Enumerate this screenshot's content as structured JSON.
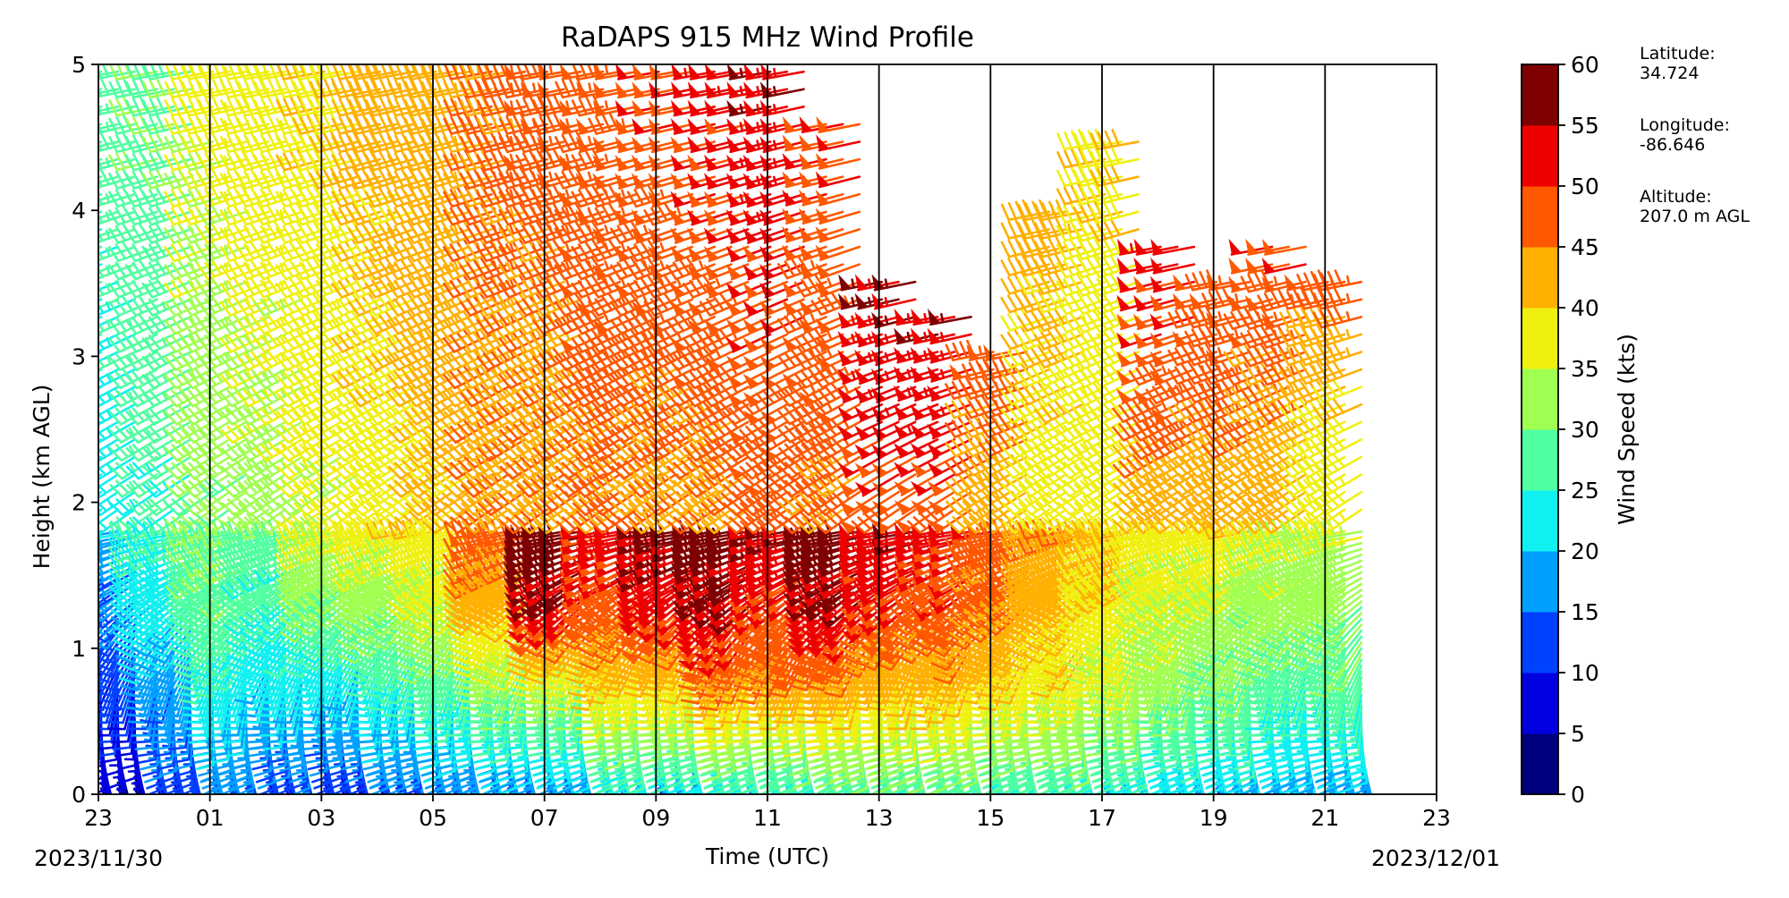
{
  "chart_data": {
    "type": "wind-barb-profile",
    "title": "RaDAPS 915 MHz Wind Profile",
    "xlabel": "Time (UTC)",
    "ylabel": "Height (km AGL)",
    "x_ticks": [
      "23",
      "01",
      "03",
      "05",
      "07",
      "09",
      "11",
      "13",
      "15",
      "17",
      "19",
      "21",
      "23"
    ],
    "x_range_hours": [
      0,
      24
    ],
    "y_ticks": [
      "0",
      "1",
      "2",
      "3",
      "4",
      "5"
    ],
    "ylim": [
      0,
      5
    ],
    "start_date": "2023/11/30",
    "end_date": "2023/12/01",
    "vertical_gridlines_at_hours": [
      2,
      4,
      6,
      8,
      10,
      12,
      14,
      16,
      18,
      20,
      22
    ],
    "colorbar": {
      "label": "Wind Speed (kts)",
      "ticks": [
        "0",
        "5",
        "10",
        "15",
        "20",
        "25",
        "30",
        "35",
        "40",
        "45",
        "50",
        "55",
        "60"
      ],
      "range": [
        0,
        60
      ],
      "colors": [
        "#00007f",
        "#0000e0",
        "#0040ff",
        "#00a0ff",
        "#10f0f0",
        "#50ffa0",
        "#a0ff50",
        "#f0f010",
        "#ffb000",
        "#ff5800",
        "#ef0000",
        "#7f0000"
      ]
    },
    "profiles": [
      {
        "t": 0.0,
        "base": [
          5,
          8,
          12,
          15,
          18
        ],
        "upper": [
          22,
          25,
          28
        ],
        "top": 5.0
      },
      {
        "t": 1.0,
        "base": [
          10,
          14,
          18,
          22,
          25
        ],
        "upper": [
          25,
          28,
          30
        ],
        "top": 5.0
      },
      {
        "t": 2.0,
        "base": [
          12,
          18,
          24,
          28,
          30
        ],
        "upper": [
          30,
          34,
          37
        ],
        "top": 5.0
      },
      {
        "t": 3.0,
        "base": [
          10,
          16,
          22,
          26,
          28
        ],
        "upper": [
          33,
          36,
          38
        ],
        "top": 5.0
      },
      {
        "t": 4.0,
        "base": [
          8,
          15,
          22,
          30,
          35
        ],
        "upper": [
          35,
          38,
          40
        ],
        "top": 5.0
      },
      {
        "t": 5.0,
        "base": [
          10,
          18,
          25,
          32,
          38
        ],
        "upper": [
          38,
          40,
          42
        ],
        "top": 5.0
      },
      {
        "t": 6.0,
        "base": [
          12,
          20,
          28,
          35,
          38
        ],
        "upper": [
          40,
          42,
          44
        ],
        "top": 5.0
      },
      {
        "t": 7.0,
        "base": [
          12,
          22,
          32,
          42,
          48
        ],
        "upper": [
          44,
          45,
          46
        ],
        "top": 5.0
      },
      {
        "t": 8.0,
        "base": [
          15,
          22,
          35,
          55,
          58
        ],
        "upper": [
          44,
          45,
          48
        ],
        "top": 5.0
      },
      {
        "t": 9.0,
        "base": [
          18,
          28,
          40,
          48,
          52
        ],
        "upper": [
          45,
          47,
          48
        ],
        "top": 5.0
      },
      {
        "t": 10.0,
        "base": [
          15,
          28,
          40,
          52,
          56
        ],
        "upper": [
          44,
          47,
          50
        ],
        "top": 5.0
      },
      {
        "t": 11.0,
        "base": [
          18,
          30,
          45,
          55,
          58
        ],
        "upper": [
          44,
          48,
          52
        ],
        "top": 5.0
      },
      {
        "t": 12.0,
        "base": [
          20,
          30,
          45,
          50,
          55
        ],
        "upper": [
          46,
          50,
          55
        ],
        "top": 5.0
      },
      {
        "t": 13.0,
        "base": [
          22,
          32,
          44,
          55,
          58
        ],
        "upper": [
          45,
          48,
          50
        ],
        "top": 4.7
      },
      {
        "t": 14.0,
        "base": [
          22,
          32,
          42,
          50,
          54
        ],
        "upper": [
          48,
          52,
          56
        ],
        "top": 3.6
      },
      {
        "t": 15.0,
        "base": [
          22,
          32,
          42,
          48,
          52
        ],
        "upper": [
          48,
          52,
          55
        ],
        "top": 3.3
      },
      {
        "t": 16.0,
        "base": [
          20,
          30,
          40,
          46,
          48
        ],
        "upper": [
          42,
          45,
          48
        ],
        "top": 3.1
      },
      {
        "t": 17.0,
        "base": [
          20,
          30,
          38,
          42,
          44
        ],
        "upper": [
          38,
          40,
          42
        ],
        "top": 4.1
      },
      {
        "t": 18.0,
        "base": [
          18,
          28,
          35,
          38,
          42
        ],
        "upper": [
          36,
          38,
          40
        ],
        "top": 4.5
      },
      {
        "t": 19.0,
        "base": [
          18,
          25,
          32,
          35,
          38
        ],
        "upper": [
          42,
          48,
          52
        ],
        "top": 3.8
      },
      {
        "t": 20.0,
        "base": [
          16,
          24,
          30,
          34,
          38
        ],
        "upper": [
          42,
          46,
          48
        ],
        "top": 3.6
      },
      {
        "t": 21.0,
        "base": [
          16,
          22,
          28,
          32,
          36
        ],
        "upper": [
          42,
          45,
          50
        ],
        "top": 3.8
      },
      {
        "t": 22.0,
        "base": [
          15,
          22,
          28,
          32,
          34
        ],
        "upper": [
          36,
          40,
          48
        ],
        "top": 3.6
      }
    ]
  },
  "site_info": {
    "latitude_label": "Latitude:",
    "latitude_value": "34.724",
    "longitude_label": "Longitude:",
    "longitude_value": "-86.646",
    "altitude_label": "Altitude:",
    "altitude_value": "207.0 m AGL"
  }
}
